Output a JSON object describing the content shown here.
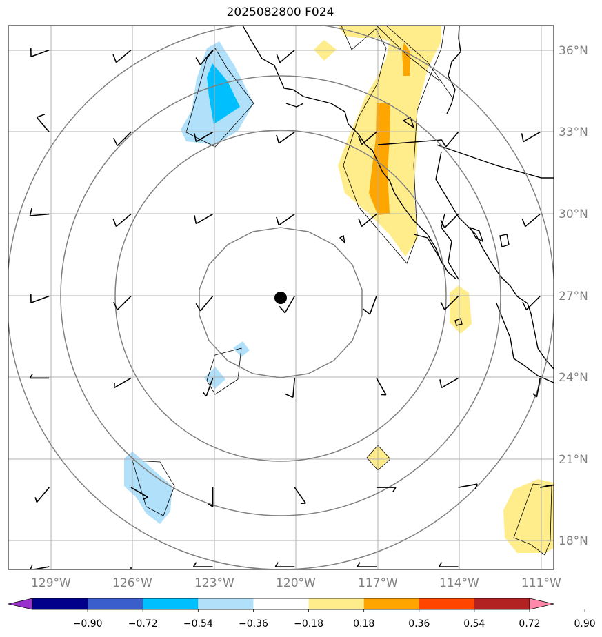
{
  "title": "2025082800 F024",
  "chart_data": {
    "type": "contour-map",
    "title": "2025082800 F024",
    "x_ticks": [
      "129°W",
      "126°W",
      "123°W",
      "120°W",
      "117°W",
      "114°W",
      "111°W"
    ],
    "y_ticks": [
      "36°N",
      "33°N",
      "30°N",
      "27°N",
      "24°N",
      "21°N",
      "18°N"
    ],
    "xlim": [
      -130.5,
      -110.5
    ],
    "ylim": [
      17.0,
      36.9
    ],
    "center_point": {
      "lon": -120.0,
      "lat": 27.0
    },
    "range_rings_count": 4,
    "colorbar": {
      "levels": [
        "−0.90",
        "−0.72",
        "−0.54",
        "−0.36",
        "−0.18",
        "0.18",
        "0.36",
        "0.54",
        "0.72",
        "0.90"
      ],
      "colors": [
        "#9932cc",
        "#00008b",
        "#3a5fcd",
        "#00bfff",
        "#b0e0fa",
        "#ffffff",
        "#ffec8b",
        "#ffa500",
        "#ff4500",
        "#b22222",
        "#ff88aa"
      ],
      "extend": "both"
    },
    "wind_barbs": [
      {
        "lon": -129,
        "lat": 36.0,
        "dir": 250,
        "spd": 10
      },
      {
        "lon": -126,
        "lat": 36.0,
        "dir": 230,
        "spd": 10
      },
      {
        "lon": -123,
        "lat": 36.0,
        "dir": 220,
        "spd": 10
      },
      {
        "lon": -120,
        "lat": 36.0,
        "dir": 230,
        "spd": 10
      },
      {
        "lon": -129,
        "lat": 33.0,
        "dir": 320,
        "spd": 10
      },
      {
        "lon": -126,
        "lat": 33.0,
        "dir": 225,
        "spd": 10
      },
      {
        "lon": -123,
        "lat": 33.0,
        "dir": 240,
        "spd": 10
      },
      {
        "lon": -120,
        "lat": 33.0,
        "dir": 235,
        "spd": 10
      },
      {
        "lon": -117,
        "lat": 33.0,
        "dir": 230,
        "spd": 10
      },
      {
        "lon": -114,
        "lat": 33.0,
        "dir": 220,
        "spd": 10
      },
      {
        "lon": -111,
        "lat": 33.0,
        "dir": 240,
        "spd": 10
      },
      {
        "lon": -129,
        "lat": 30.0,
        "dir": 265,
        "spd": 10
      },
      {
        "lon": -126,
        "lat": 30.0,
        "dir": 230,
        "spd": 10
      },
      {
        "lon": -123,
        "lat": 30.0,
        "dir": 240,
        "spd": 10
      },
      {
        "lon": -120,
        "lat": 30.0,
        "dir": 235,
        "spd": 10
      },
      {
        "lon": -117,
        "lat": 30.0,
        "dir": 230,
        "spd": 10
      },
      {
        "lon": -114,
        "lat": 30.0,
        "dir": 225,
        "spd": 10
      },
      {
        "lon": -111,
        "lat": 30.0,
        "dir": 230,
        "spd": 10
      },
      {
        "lon": -129,
        "lat": 27.0,
        "dir": 250,
        "spd": 10
      },
      {
        "lon": -126,
        "lat": 27.0,
        "dir": 225,
        "spd": 10
      },
      {
        "lon": -123,
        "lat": 27.0,
        "dir": 220,
        "spd": 10
      },
      {
        "lon": -120,
        "lat": 27.0,
        "dir": 210,
        "spd": 10
      },
      {
        "lon": -117,
        "lat": 27.0,
        "dir": 200,
        "spd": 10
      },
      {
        "lon": -114,
        "lat": 27.0,
        "dir": 225,
        "spd": 10
      },
      {
        "lon": -111,
        "lat": 27.0,
        "dir": 225,
        "spd": 10
      },
      {
        "lon": -129,
        "lat": 24.0,
        "dir": 270,
        "spd": 5
      },
      {
        "lon": -126,
        "lat": 24.0,
        "dir": 240,
        "spd": 5
      },
      {
        "lon": -123,
        "lat": 24.0,
        "dir": 200,
        "spd": 5
      },
      {
        "lon": -120,
        "lat": 24.0,
        "dir": 185,
        "spd": 10
      },
      {
        "lon": -117,
        "lat": 24.0,
        "dir": 150,
        "spd": 5
      },
      {
        "lon": -114,
        "lat": 24.0,
        "dir": 240,
        "spd": 10
      },
      {
        "lon": -111,
        "lat": 24.0,
        "dir": 190,
        "spd": 5
      },
      {
        "lon": -129,
        "lat": 20.0,
        "dir": 220,
        "spd": 5
      },
      {
        "lon": -126,
        "lat": 20.0,
        "dir": 120,
        "spd": 5
      },
      {
        "lon": -123,
        "lat": 20.0,
        "dir": 180,
        "spd": 5
      },
      {
        "lon": -120,
        "lat": 20.0,
        "dir": 145,
        "spd": 5
      },
      {
        "lon": -117,
        "lat": 20.0,
        "dir": 90,
        "spd": 5
      },
      {
        "lon": -114,
        "lat": 20.0,
        "dir": 80,
        "spd": 5
      },
      {
        "lon": -111,
        "lat": 20.0,
        "dir": 80,
        "spd": 5
      },
      {
        "lon": -129,
        "lat": 17.1,
        "dir": 260,
        "spd": 5
      },
      {
        "lon": -126,
        "lat": 17.1,
        "dir": 180,
        "spd": 5
      },
      {
        "lon": -123,
        "lat": 17.1,
        "dir": 270,
        "spd": 5
      },
      {
        "lon": -120,
        "lat": 17.1,
        "dir": 270,
        "spd": 5
      },
      {
        "lon": -117,
        "lat": 17.1,
        "dir": 270,
        "spd": 5
      },
      {
        "lon": -114,
        "lat": 17.1,
        "dir": 270,
        "spd": 5
      }
    ]
  }
}
